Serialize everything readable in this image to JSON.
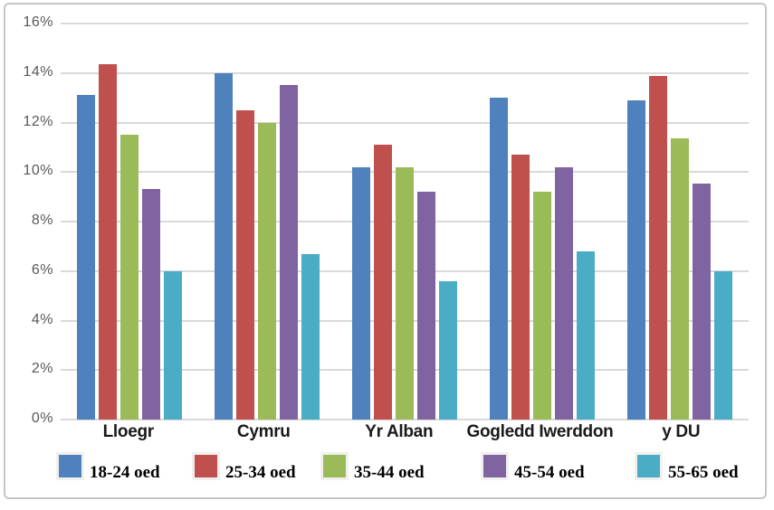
{
  "chart_data": {
    "type": "bar",
    "title": "",
    "xlabel": "",
    "ylabel": "",
    "categories": [
      "Lloegr",
      "Cymru",
      "Yr Alban",
      "Gogledd Iwerddon",
      "y DU"
    ],
    "series": [
      {
        "name": "18-24 oed",
        "color": "#4F81BD",
        "values": [
          13.1,
          14.0,
          10.2,
          13.0,
          12.9
        ]
      },
      {
        "name": "25-34 oed",
        "color": "#C0504D",
        "values": [
          14.35,
          12.5,
          11.1,
          10.7,
          13.9
        ]
      },
      {
        "name": "35-44 oed",
        "color": "#9BBB59",
        "values": [
          11.5,
          12.0,
          10.2,
          9.2,
          11.35
        ]
      },
      {
        "name": "45-54 oed",
        "color": "#8064A2",
        "values": [
          9.3,
          13.5,
          9.2,
          10.2,
          9.55
        ]
      },
      {
        "name": "55-65 oed",
        "color": "#4BACC6",
        "values": [
          6.0,
          6.7,
          5.6,
          6.8,
          6.0
        ]
      }
    ],
    "ylim": [
      0,
      16
    ],
    "ytick_step": 2,
    "ytick_labels": [
      "0%",
      "2%",
      "4%",
      "6%",
      "8%",
      "10%",
      "12%",
      "14%",
      "16%"
    ],
    "grid": true,
    "legend_position": "bottom"
  },
  "colors": {
    "grid": "#D9D9D9",
    "axis_text": "#595959",
    "frame_border": "#C6C6C6",
    "category_text": "#1A1A1A",
    "legend_text": "#000000"
  }
}
